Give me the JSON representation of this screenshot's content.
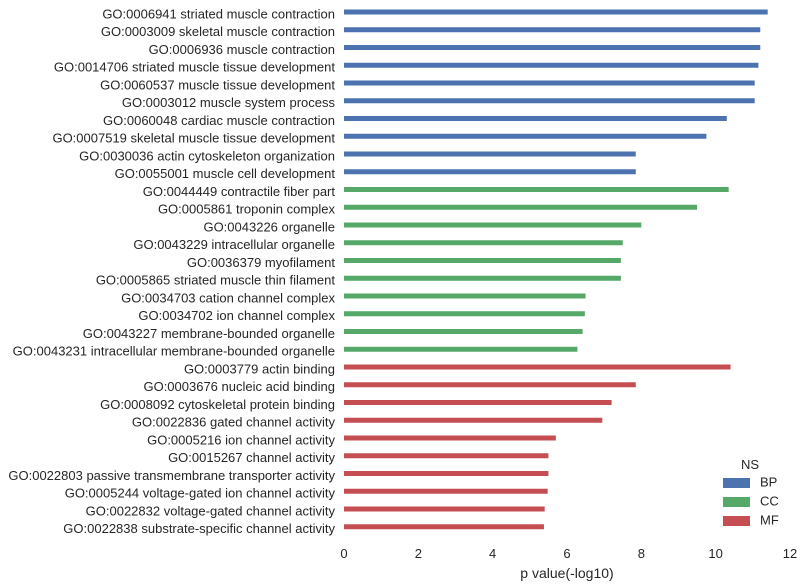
{
  "chart_data": {
    "type": "bar",
    "orientation": "horizontal",
    "xlabel": "p value(-log10)",
    "ylabel": "",
    "xlim": [
      0,
      12
    ],
    "xticks": [
      0,
      2,
      4,
      6,
      8,
      10,
      12
    ],
    "grid": false,
    "legend": {
      "title": "NS",
      "placement": "bottom-right",
      "entries": [
        {
          "name": "BP",
          "color": "#4c72b0"
        },
        {
          "name": "CC",
          "color": "#55a868"
        },
        {
          "name": "MF",
          "color": "#c44e52"
        }
      ]
    },
    "categories": [
      {
        "label": "GO:0006941 striated muscle contraction",
        "ns": "BP",
        "value": 11.4
      },
      {
        "label": "GO:0003009 skeletal muscle contraction",
        "ns": "BP",
        "value": 11.2
      },
      {
        "label": "GO:0006936 muscle contraction",
        "ns": "BP",
        "value": 11.2
      },
      {
        "label": "GO:0014706 striated muscle tissue development",
        "ns": "BP",
        "value": 11.15
      },
      {
        "label": "GO:0060537 muscle tissue development",
        "ns": "BP",
        "value": 11.05
      },
      {
        "label": "GO:0003012 muscle system process",
        "ns": "BP",
        "value": 11.05
      },
      {
        "label": "GO:0060048 cardiac muscle contraction",
        "ns": "BP",
        "value": 10.3
      },
      {
        "label": "GO:0007519 skeletal muscle tissue development",
        "ns": "BP",
        "value": 9.75
      },
      {
        "label": "GO:0030036 actin cytoskeleton organization",
        "ns": "BP",
        "value": 7.85
      },
      {
        "label": "GO:0055001 muscle cell development",
        "ns": "BP",
        "value": 7.85
      },
      {
        "label": "GO:0044449 contractile fiber part",
        "ns": "CC",
        "value": 10.35
      },
      {
        "label": "GO:0005861 troponin complex",
        "ns": "CC",
        "value": 9.5
      },
      {
        "label": "GO:0043226 organelle",
        "ns": "CC",
        "value": 8.0
      },
      {
        "label": "GO:0043229 intracellular organelle",
        "ns": "CC",
        "value": 7.5
      },
      {
        "label": "GO:0036379 myofilament",
        "ns": "CC",
        "value": 7.45
      },
      {
        "label": "GO:0005865 striated muscle thin filament",
        "ns": "CC",
        "value": 7.45
      },
      {
        "label": "GO:0034703 cation channel complex",
        "ns": "CC",
        "value": 6.5
      },
      {
        "label": "GO:0034702 ion channel complex",
        "ns": "CC",
        "value": 6.48
      },
      {
        "label": "GO:0043227 membrane-bounded organelle",
        "ns": "CC",
        "value": 6.42
      },
      {
        "label": "GO:0043231 intracellular membrane-bounded organelle",
        "ns": "CC",
        "value": 6.28
      },
      {
        "label": "GO:0003779 actin binding",
        "ns": "MF",
        "value": 10.4
      },
      {
        "label": "GO:0003676 nucleic acid binding",
        "ns": "MF",
        "value": 7.85
      },
      {
        "label": "GO:0008092 cytoskeletal protein binding",
        "ns": "MF",
        "value": 7.2
      },
      {
        "label": "GO:0022836 gated channel activity",
        "ns": "MF",
        "value": 6.95
      },
      {
        "label": "GO:0005216 ion channel activity",
        "ns": "MF",
        "value": 5.7
      },
      {
        "label": "GO:0015267 channel activity",
        "ns": "MF",
        "value": 5.5
      },
      {
        "label": "GO:0022803 passive transmembrane transporter activity",
        "ns": "MF",
        "value": 5.5
      },
      {
        "label": "GO:0005244 voltage-gated ion channel activity",
        "ns": "MF",
        "value": 5.48
      },
      {
        "label": "GO:0022832 voltage-gated channel activity",
        "ns": "MF",
        "value": 5.4
      },
      {
        "label": "GO:0022838 substrate-specific channel activity",
        "ns": "MF",
        "value": 5.38
      }
    ]
  }
}
